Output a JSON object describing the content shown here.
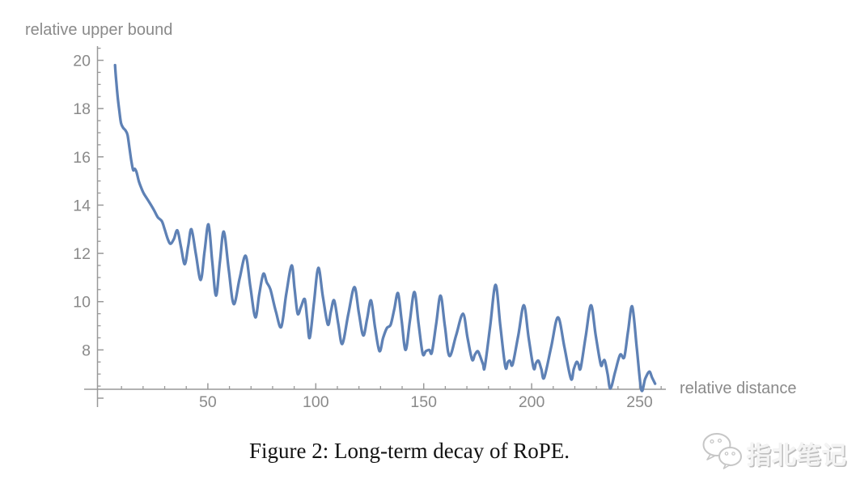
{
  "figure": {
    "plot_y_label": "relative upper bound",
    "plot_x_label": "relative distance",
    "caption": "Figure 2: Long-term decay of RoPE."
  },
  "watermark": {
    "icon": "wechat-chat-bubbles-icon",
    "text": "指北笔记"
  },
  "colors": {
    "line": "#5E81B5",
    "axis": "#999999",
    "tick_label": "#8a8a8a",
    "caption": "#121212",
    "watermark": "#c6c6c6"
  },
  "chart_data": {
    "type": "line",
    "title": "",
    "xlabel": "relative distance",
    "ylabel": "relative upper bound",
    "xlim": [
      0,
      262
    ],
    "ylim": [
      6.37,
      20.42
    ],
    "grid": false,
    "legend": "none",
    "x_major_ticks": [
      50,
      100,
      150,
      200,
      250
    ],
    "x_minor_tick_step": 10,
    "y_major_ticks": [
      6,
      8,
      10,
      12,
      14,
      16,
      18,
      20
    ],
    "y_labeled_ticks": [
      8,
      10,
      12,
      14,
      16,
      18,
      20
    ],
    "y_minor_tick_step": 0.5,
    "series": [
      {
        "name": "relative upper bound",
        "color": "#5E81B5",
        "points": [
          [
            7,
            19.8
          ],
          [
            7.6,
            19.1
          ],
          [
            8.2,
            18.5
          ],
          [
            9,
            17.9
          ],
          [
            9.8,
            17.4
          ],
          [
            10.8,
            17.2
          ],
          [
            11.8,
            17.1
          ],
          [
            12.8,
            16.9
          ],
          [
            13.8,
            16.3
          ],
          [
            14.6,
            15.8
          ],
          [
            15.4,
            15.45
          ],
          [
            16.2,
            15.5
          ],
          [
            17,
            15.35
          ],
          [
            18,
            15.0
          ],
          [
            19,
            14.75
          ],
          [
            20.2,
            14.5
          ],
          [
            21.6,
            14.3
          ],
          [
            23,
            14.1
          ],
          [
            25,
            13.8
          ],
          [
            26.8,
            13.5
          ],
          [
            28.7,
            13.33
          ],
          [
            30,
            13.0
          ],
          [
            31.4,
            12.6
          ],
          [
            32.7,
            12.4
          ],
          [
            34.3,
            12.6
          ],
          [
            35.9,
            12.95
          ],
          [
            37.6,
            12.25
          ],
          [
            39.3,
            11.55
          ],
          [
            40.9,
            12.3
          ],
          [
            42.4,
            13.0
          ],
          [
            44.5,
            11.95
          ],
          [
            46.7,
            10.9
          ],
          [
            48.5,
            12.1
          ],
          [
            50.3,
            13.2
          ],
          [
            52,
            11.7
          ],
          [
            53.8,
            10.25
          ],
          [
            55.6,
            11.65
          ],
          [
            57.4,
            12.9
          ],
          [
            59.7,
            11.3
          ],
          [
            62,
            9.9
          ],
          [
            64.7,
            10.95
          ],
          [
            67.5,
            11.9
          ],
          [
            69.7,
            10.6
          ],
          [
            72,
            9.35
          ],
          [
            73.8,
            10.3
          ],
          [
            75.7,
            11.15
          ],
          [
            77.3,
            10.8
          ],
          [
            79,
            10.5
          ],
          [
            81.5,
            9.6
          ],
          [
            84,
            8.95
          ],
          [
            86.3,
            10.3
          ],
          [
            88.8,
            11.5
          ],
          [
            90.2,
            10.5
          ],
          [
            91.6,
            9.5
          ],
          [
            93.2,
            9.8
          ],
          [
            94.9,
            10.1
          ],
          [
            96,
            9.3
          ],
          [
            97.2,
            8.5
          ],
          [
            99.2,
            10.0
          ],
          [
            101.2,
            11.4
          ],
          [
            103.3,
            10.2
          ],
          [
            105.6,
            9.05
          ],
          [
            107,
            9.6
          ],
          [
            108.5,
            10.05
          ],
          [
            110.4,
            9.1
          ],
          [
            112.3,
            8.25
          ],
          [
            115.1,
            9.5
          ],
          [
            117.9,
            10.6
          ],
          [
            120,
            9.5
          ],
          [
            122,
            8.6
          ],
          [
            123.8,
            9.3
          ],
          [
            125.6,
            10.05
          ],
          [
            127.5,
            8.9
          ],
          [
            129.5,
            7.95
          ],
          [
            131.2,
            8.5
          ],
          [
            132.9,
            8.9
          ],
          [
            134.7,
            9.05
          ],
          [
            136.4,
            9.7
          ],
          [
            138.1,
            10.35
          ],
          [
            139.8,
            9.2
          ],
          [
            141.6,
            8.0
          ],
          [
            143.6,
            9.2
          ],
          [
            145.7,
            10.4
          ],
          [
            147.6,
            9.1
          ],
          [
            149.5,
            7.85
          ],
          [
            151,
            7.95
          ],
          [
            152.6,
            8.0
          ],
          [
            153.8,
            7.9
          ],
          [
            155.8,
            9.1
          ],
          [
            157.8,
            10.25
          ],
          [
            159.8,
            9.0
          ],
          [
            161.9,
            7.75
          ],
          [
            165,
            8.6
          ],
          [
            168.2,
            9.5
          ],
          [
            170.3,
            8.5
          ],
          [
            172.4,
            7.6
          ],
          [
            173.7,
            7.8
          ],
          [
            175,
            7.95
          ],
          [
            176.1,
            7.75
          ],
          [
            177.5,
            7.4
          ],
          [
            178.3,
            7.3
          ],
          [
            180.8,
            9.0
          ],
          [
            183.3,
            10.7
          ],
          [
            185.5,
            9.0
          ],
          [
            187.8,
            7.3
          ],
          [
            189,
            7.5
          ],
          [
            190,
            7.55
          ],
          [
            191.2,
            7.4
          ],
          [
            193.8,
            8.6
          ],
          [
            196.4,
            9.85
          ],
          [
            198.6,
            8.5
          ],
          [
            200.9,
            7.25
          ],
          [
            202,
            7.45
          ],
          [
            203.2,
            7.55
          ],
          [
            204.5,
            7.2
          ],
          [
            205.8,
            6.85
          ],
          [
            209,
            8.1
          ],
          [
            212.2,
            9.35
          ],
          [
            215.2,
            8.1
          ],
          [
            218.2,
            6.8
          ],
          [
            219.5,
            7.2
          ],
          [
            220.8,
            7.5
          ],
          [
            221.7,
            7.4
          ],
          [
            222.7,
            7.25
          ],
          [
            225.1,
            8.6
          ],
          [
            227.5,
            9.85
          ],
          [
            229.7,
            8.6
          ],
          [
            232,
            7.4
          ],
          [
            233,
            7.5
          ],
          [
            233.9,
            7.55
          ],
          [
            235.2,
            7.0
          ],
          [
            236.5,
            6.4
          ],
          [
            238.7,
            7.1
          ],
          [
            241,
            7.8
          ],
          [
            242.9,
            7.7
          ],
          [
            244.7,
            8.8
          ],
          [
            246.6,
            9.8
          ],
          [
            248.7,
            8.1
          ],
          [
            250.8,
            6.35
          ],
          [
            252.6,
            6.8
          ],
          [
            254.5,
            7.1
          ],
          [
            255.8,
            6.85
          ],
          [
            257.2,
            6.6
          ]
        ]
      }
    ]
  }
}
